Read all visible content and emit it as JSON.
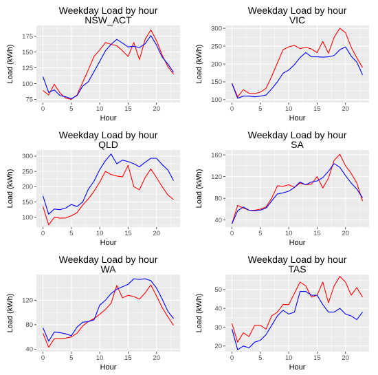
{
  "colors": {
    "series_red": "#ff0000",
    "series_blue": "#0000ff",
    "panel_bg": "#ebebeb",
    "grid": "#ffffff"
  },
  "chart_data": [
    {
      "type": "line",
      "title": "Weekday Load by hour",
      "subtitle": "NSW_ACT",
      "xlabel": "Hour",
      "ylabel": "Load (kWh)",
      "xlim": [
        -1.15,
        24.15
      ],
      "ylim": [
        70,
        192
      ],
      "xticks": [
        0,
        5,
        10,
        15,
        20
      ],
      "yticks": [
        75,
        100,
        125,
        150,
        175
      ],
      "x": [
        0,
        1,
        2,
        3,
        4,
        5,
        6,
        7,
        8,
        9,
        10,
        11,
        12,
        13,
        14,
        15,
        16,
        17,
        18,
        19,
        20,
        21,
        22,
        23
      ],
      "series": [
        {
          "color": "red",
          "values": [
            89,
            82,
            99,
            85,
            77,
            75,
            82,
            102,
            122,
            143,
            153,
            165,
            162,
            160,
            152,
            143,
            165,
            138,
            170,
            185,
            168,
            145,
            127,
            115
          ]
        },
        {
          "color": "blue",
          "values": [
            111,
            86,
            90,
            81,
            79,
            76,
            81,
            96,
            103,
            119,
            135,
            152,
            162,
            170,
            164,
            158,
            159,
            157,
            163,
            176,
            161,
            142,
            131,
            118
          ]
        }
      ]
    },
    {
      "type": "line",
      "title": "Weekday Load by hour",
      "subtitle": "VIC",
      "xlabel": "Hour",
      "ylabel": "Load (kWh)",
      "xlim": [
        -1.15,
        24.15
      ],
      "ylim": [
        92,
        308
      ],
      "xticks": [
        0,
        5,
        10,
        15,
        20
      ],
      "yticks": [
        100,
        150,
        200,
        250,
        300
      ],
      "x": [
        0,
        1,
        2,
        3,
        4,
        5,
        6,
        7,
        8,
        9,
        10,
        11,
        12,
        13,
        14,
        15,
        16,
        17,
        18,
        19,
        20,
        21,
        22,
        23
      ],
      "series": [
        {
          "color": "red",
          "values": [
            146,
            108,
            128,
            118,
            117,
            121,
            132,
            165,
            203,
            240,
            248,
            252,
            243,
            247,
            242,
            232,
            263,
            230,
            275,
            300,
            288,
            247,
            217,
            190
          ]
        },
        {
          "color": "blue",
          "values": [
            145,
            104,
            110,
            110,
            108,
            110,
            113,
            130,
            150,
            174,
            183,
            198,
            218,
            232,
            220,
            220,
            219,
            220,
            224,
            240,
            248,
            222,
            205,
            170
          ]
        }
      ]
    },
    {
      "type": "line",
      "title": "Weekday Load by hour",
      "subtitle": "QLD",
      "xlabel": "Hour",
      "ylabel": "Load (kWh)",
      "xlim": [
        -1.15,
        24.15
      ],
      "ylim": [
        68,
        320
      ],
      "xticks": [
        0,
        5,
        10,
        15,
        20
      ],
      "yticks": [
        100,
        150,
        200,
        250,
        300
      ],
      "x": [
        0,
        1,
        2,
        3,
        4,
        5,
        6,
        7,
        8,
        9,
        10,
        11,
        12,
        13,
        14,
        15,
        16,
        17,
        18,
        19,
        20,
        21,
        22,
        23
      ],
      "series": [
        {
          "color": "red",
          "values": [
            135,
            75,
            100,
            97,
            98,
            105,
            115,
            140,
            160,
            185,
            215,
            250,
            240,
            235,
            232,
            270,
            200,
            190,
            230,
            258,
            230,
            200,
            173,
            158
          ]
        },
        {
          "color": "blue",
          "values": [
            170,
            110,
            127,
            125,
            130,
            142,
            135,
            150,
            192,
            218,
            256,
            285,
            307,
            275,
            287,
            282,
            275,
            265,
            280,
            293,
            293,
            272,
            255,
            220
          ]
        }
      ]
    },
    {
      "type": "line",
      "title": "Weekday Load by hour",
      "subtitle": "SA",
      "xlabel": "Hour",
      "ylabel": "Load (kWh)",
      "xlim": [
        -1.15,
        24.15
      ],
      "ylim": [
        27,
        169
      ],
      "xticks": [
        0,
        5,
        10,
        15,
        20
      ],
      "yticks": [
        40,
        80,
        120,
        160
      ],
      "x": [
        0,
        1,
        2,
        3,
        4,
        5,
        6,
        7,
        8,
        9,
        10,
        11,
        12,
        13,
        14,
        15,
        16,
        17,
        18,
        19,
        20,
        21,
        22,
        23
      ],
      "series": [
        {
          "color": "red",
          "values": [
            33,
            67,
            62,
            58,
            58,
            60,
            64,
            80,
            103,
            102,
            105,
            100,
            108,
            105,
            106,
            120,
            99,
            117,
            150,
            161,
            140,
            126,
            108,
            75
          ]
        },
        {
          "color": "blue",
          "values": [
            33,
            57,
            64,
            58,
            57,
            58,
            62,
            75,
            88,
            90,
            93,
            100,
            110,
            105,
            110,
            112,
            118,
            130,
            144,
            137,
            122,
            108,
            97,
            81
          ]
        }
      ]
    },
    {
      "type": "line",
      "title": "Weekday Load by hour",
      "subtitle": "WA",
      "xlabel": "Hour",
      "ylabel": "Load (kWh)",
      "xlim": [
        -1.15,
        24.15
      ],
      "ylim": [
        36,
        162
      ],
      "xticks": [
        0,
        5,
        10,
        15,
        20
      ],
      "yticks": [
        40,
        80,
        120
      ],
      "x": [
        0,
        1,
        2,
        3,
        4,
        5,
        6,
        7,
        8,
        9,
        10,
        11,
        12,
        13,
        14,
        15,
        16,
        17,
        18,
        19,
        20,
        21,
        22,
        23
      ],
      "series": [
        {
          "color": "red",
          "values": [
            66,
            43,
            57,
            57,
            58,
            60,
            66,
            78,
            85,
            90,
            97,
            105,
            115,
            144,
            124,
            128,
            126,
            122,
            132,
            145,
            127,
            108,
            93,
            79
          ]
        },
        {
          "color": "blue",
          "values": [
            75,
            53,
            68,
            67,
            65,
            62,
            76,
            84,
            85,
            88,
            112,
            120,
            131,
            138,
            142,
            146,
            155,
            154,
            155,
            152,
            140,
            122,
            102,
            90
          ]
        }
      ]
    },
    {
      "type": "line",
      "title": "Weekday Load by hour",
      "subtitle": "TAS",
      "xlabel": "Hour",
      "ylabel": "Load (kWh)",
      "xlim": [
        -1.15,
        24.15
      ],
      "ylim": [
        17,
        58
      ],
      "xticks": [
        0,
        5,
        10,
        15,
        20
      ],
      "yticks": [
        20,
        30,
        40,
        50
      ],
      "x": [
        0,
        1,
        2,
        3,
        4,
        5,
        6,
        7,
        8,
        9,
        10,
        11,
        12,
        13,
        14,
        15,
        16,
        17,
        18,
        19,
        20,
        21,
        22,
        23
      ],
      "series": [
        {
          "color": "red",
          "values": [
            32,
            22,
            27,
            25,
            31,
            31,
            29,
            36,
            38,
            42,
            42,
            48,
            54,
            52,
            46,
            47,
            54,
            43,
            52,
            57,
            54,
            47,
            51,
            46
          ]
        },
        {
          "color": "blue",
          "values": [
            29,
            18,
            20,
            19,
            22,
            23,
            26,
            31,
            36,
            39,
            37,
            38,
            49,
            49,
            47,
            47,
            42,
            38,
            38,
            40,
            37,
            36,
            34,
            38
          ]
        }
      ]
    }
  ]
}
